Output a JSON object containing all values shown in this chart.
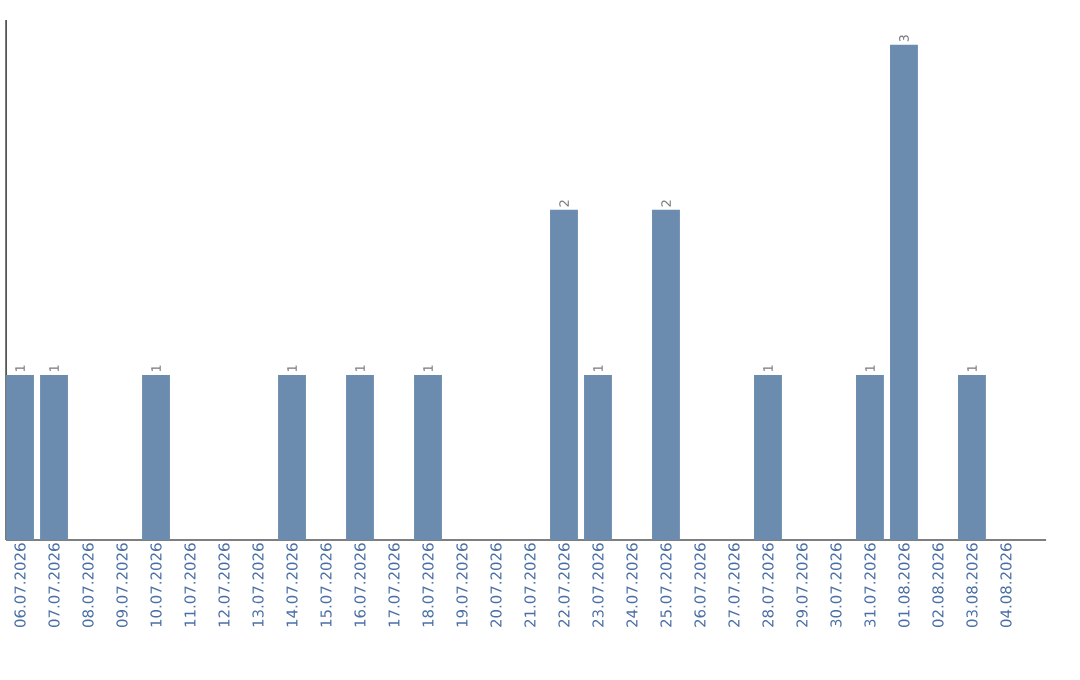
{
  "chart_data": {
    "type": "bar",
    "categories": [
      "06.07.2026",
      "07.07.2026",
      "08.07.2026",
      "09.07.2026",
      "10.07.2026",
      "11.07.2026",
      "12.07.2026",
      "13.07.2026",
      "14.07.2026",
      "15.07.2026",
      "16.07.2026",
      "17.07.2026",
      "18.07.2026",
      "19.07.2026",
      "20.07.2026",
      "21.07.2026",
      "22.07.2026",
      "23.07.2026",
      "24.07.2026",
      "25.07.2026",
      "26.07.2026",
      "27.07.2026",
      "28.07.2026",
      "29.07.2026",
      "30.07.2026",
      "31.07.2026",
      "01.08.2026",
      "02.08.2026",
      "03.08.2026",
      "04.08.2026"
    ],
    "values": [
      1,
      1,
      0,
      0,
      1,
      0,
      0,
      0,
      1,
      0,
      1,
      0,
      1,
      0,
      0,
      0,
      2,
      1,
      0,
      2,
      0,
      0,
      1,
      0,
      0,
      1,
      3,
      0,
      1,
      0
    ],
    "value_labels": [
      "1",
      "1",
      null,
      null,
      "1",
      null,
      null,
      null,
      "1",
      null,
      "1",
      null,
      "1",
      null,
      null,
      null,
      "2",
      "1",
      null,
      "2",
      null,
      null,
      "1",
      null,
      null,
      "1",
      "3",
      null,
      "1",
      null
    ],
    "color": "#6b8cae"
  }
}
